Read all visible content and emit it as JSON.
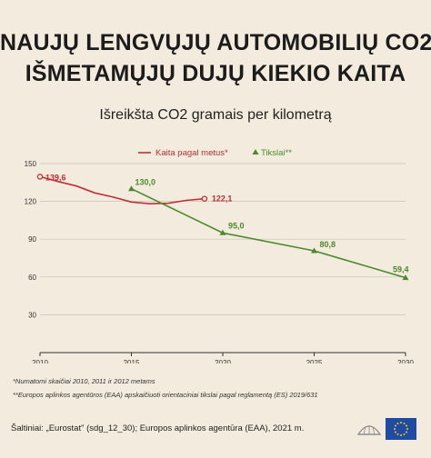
{
  "title_lines": [
    "NAUJŲ LENGVŲJŲ AUTOMOBILIŲ CO2",
    "IŠMETAMŲJŲ DUJŲ KIEKIO KAITA"
  ],
  "subtitle": "Išreikšta CO2 gramais per kilometrą",
  "notes": {
    "note1": "*Numatomi skaičiai 2010, 2011 ir 2012 metams",
    "note2": "**Europos aplinkos agentūros (EAA) apskaičiuoti orientaciniai tikslai pagal reglamentą (ES) 2019/631"
  },
  "source": "Šaltiniai: „Eurostat\" (sdg_12_30); Europos aplinkos agentūra (EAA), 2021 m.",
  "icons": [
    "parliament-logo-icon",
    "eu-flag-icon"
  ],
  "colors": {
    "actual": "#c03038",
    "target": "#4a8a2c",
    "background": "#f3ebdd",
    "grid": "#c9c2b6"
  },
  "chart_data": {
    "type": "line",
    "xlim": [
      2010,
      2030
    ],
    "ylim": [
      0,
      150
    ],
    "xticks": [
      "2010",
      "2015",
      "2020",
      "2025",
      "2030"
    ],
    "yticks": [
      "30",
      "60",
      "90",
      "120",
      "150"
    ],
    "grid": "horizontal",
    "legend_position": "top-right",
    "series": [
      {
        "name": "Kaita pagal metus*",
        "marker": "circle",
        "points": [
          {
            "x": 2010,
            "y": 139.6,
            "label": "139,6"
          },
          {
            "x": 2011,
            "y": 135.7
          },
          {
            "x": 2012,
            "y": 132.2
          },
          {
            "x": 2013,
            "y": 126.7
          },
          {
            "x": 2014,
            "y": 123.4
          },
          {
            "x": 2015,
            "y": 119.5
          },
          {
            "x": 2016,
            "y": 118.1
          },
          {
            "x": 2017,
            "y": 118.5
          },
          {
            "x": 2018,
            "y": 120.8
          },
          {
            "x": 2019,
            "y": 122.1,
            "label": "122,1"
          }
        ]
      },
      {
        "name": "Tikslai**",
        "marker": "triangle",
        "points": [
          {
            "x": 2015,
            "y": 130.0,
            "label": "130,0"
          },
          {
            "x": 2020,
            "y": 95.0,
            "label": "95,0"
          },
          {
            "x": 2025,
            "y": 80.8,
            "label": "80,8"
          },
          {
            "x": 2030,
            "y": 59.4,
            "label": "59,4"
          }
        ]
      }
    ]
  }
}
